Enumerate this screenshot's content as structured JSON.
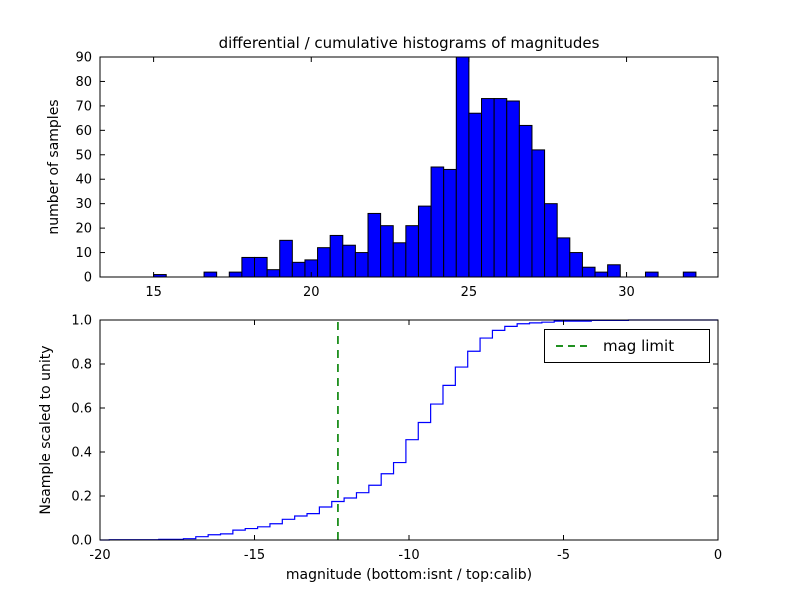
{
  "figure": {
    "background": "#ffffff",
    "axis_color": "#000000"
  },
  "chart_data": [
    {
      "type": "bar",
      "title": "differential / cumulative histograms of magnitudes",
      "ylabel": "number of samples",
      "xlabel": "",
      "xlim": [
        13.3,
        32.9
      ],
      "ylim": [
        0,
        90
      ],
      "xticks": [
        15,
        20,
        25,
        30
      ],
      "xtick_labels": [
        "15",
        "20",
        "25",
        "30"
      ],
      "yticks": [
        0,
        10,
        20,
        30,
        40,
        50,
        60,
        70,
        80,
        90
      ],
      "ytick_labels": [
        "0",
        "10",
        "20",
        "30",
        "40",
        "50",
        "60",
        "70",
        "80",
        "90"
      ],
      "bar_color": "#0000ff",
      "bar_edge_color": "#000000",
      "bin_width": 0.4,
      "bins": [
        [
          15.0,
          1
        ],
        [
          16.6,
          2
        ],
        [
          17.4,
          2
        ],
        [
          17.8,
          8
        ],
        [
          18.2,
          8
        ],
        [
          18.6,
          3
        ],
        [
          19.0,
          15
        ],
        [
          19.4,
          6
        ],
        [
          19.8,
          7
        ],
        [
          20.2,
          12
        ],
        [
          20.6,
          17
        ],
        [
          21.0,
          13
        ],
        [
          21.4,
          10
        ],
        [
          21.8,
          26
        ],
        [
          22.2,
          21
        ],
        [
          22.6,
          14
        ],
        [
          23.0,
          21
        ],
        [
          23.4,
          29
        ],
        [
          23.8,
          45
        ],
        [
          24.2,
          44
        ],
        [
          24.6,
          90
        ],
        [
          25.0,
          67
        ],
        [
          25.4,
          73
        ],
        [
          25.8,
          73
        ],
        [
          26.2,
          72
        ],
        [
          26.6,
          62
        ],
        [
          27.0,
          52
        ],
        [
          27.4,
          30
        ],
        [
          27.8,
          16
        ],
        [
          28.2,
          10
        ],
        [
          28.6,
          4
        ],
        [
          29.0,
          2
        ],
        [
          29.4,
          5
        ],
        [
          30.6,
          2
        ],
        [
          31.8,
          2
        ]
      ]
    },
    {
      "type": "line",
      "title": "",
      "ylabel": "Nsample scaled to unity",
      "xlabel": "magnitude (bottom:isnt / top:calib)",
      "xlim": [
        -20,
        0
      ],
      "ylim": [
        0,
        1.0
      ],
      "xticks": [
        -20,
        -15,
        -10,
        -5,
        0
      ],
      "xtick_labels": [
        "-20",
        "-15",
        "-10",
        "-5",
        "0"
      ],
      "yticks": [
        0.0,
        0.2,
        0.4,
        0.6,
        0.8,
        1.0
      ],
      "ytick_labels": [
        "0.0",
        "0.2",
        "0.4",
        "0.6",
        "0.8",
        "1.0"
      ],
      "line_color": "#0000ff",
      "step_width": 0.4,
      "steps": [
        [
          -19.7,
          0.001
        ],
        [
          -18.1,
          0.003
        ],
        [
          -17.3,
          0.006
        ],
        [
          -16.9,
          0.015
        ],
        [
          -16.5,
          0.024
        ],
        [
          -16.1,
          0.028
        ],
        [
          -15.7,
          0.045
        ],
        [
          -15.3,
          0.052
        ],
        [
          -14.9,
          0.06
        ],
        [
          -14.5,
          0.074
        ],
        [
          -14.1,
          0.094
        ],
        [
          -13.7,
          0.109
        ],
        [
          -13.3,
          0.12
        ],
        [
          -12.9,
          0.15
        ],
        [
          -12.5,
          0.175
        ],
        [
          -12.1,
          0.191
        ],
        [
          -11.7,
          0.215
        ],
        [
          -11.3,
          0.249
        ],
        [
          -10.9,
          0.301
        ],
        [
          -10.5,
          0.352
        ],
        [
          -10.1,
          0.456
        ],
        [
          -9.7,
          0.534
        ],
        [
          -9.3,
          0.618
        ],
        [
          -8.9,
          0.703
        ],
        [
          -8.5,
          0.786
        ],
        [
          -8.1,
          0.858
        ],
        [
          -7.7,
          0.918
        ],
        [
          -7.3,
          0.953
        ],
        [
          -6.9,
          0.971
        ],
        [
          -6.5,
          0.983
        ],
        [
          -6.1,
          0.987
        ],
        [
          -5.7,
          0.99
        ],
        [
          -5.3,
          0.995
        ],
        [
          -4.1,
          0.998
        ],
        [
          -2.9,
          1.0
        ]
      ],
      "mag_limit": {
        "x": -12.3,
        "color": "#008000",
        "style": "dashed"
      },
      "legend_label": "mag limit"
    }
  ]
}
